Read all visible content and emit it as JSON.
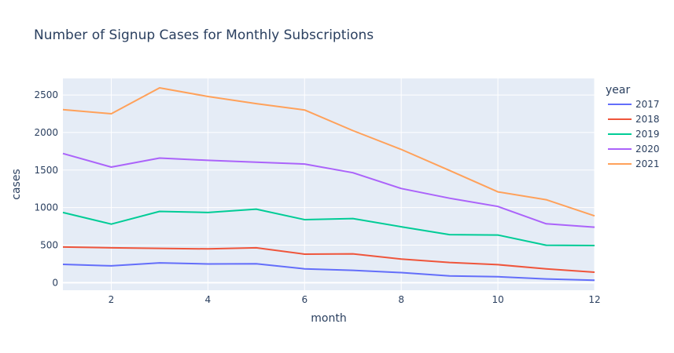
{
  "chart_data": {
    "type": "line",
    "title": "Number of Signup Cases for Monthly Subscriptions",
    "xlabel": "month",
    "ylabel": "cases",
    "legend_title": "year",
    "legend_position": "right",
    "grid": true,
    "xlim": [
      1,
      12
    ],
    "ylim": [
      -100,
      2720
    ],
    "x_ticks": [
      2,
      4,
      6,
      8,
      10,
      12
    ],
    "y_ticks": [
      0,
      500,
      1000,
      1500,
      2000,
      2500
    ],
    "x": [
      1,
      2,
      3,
      4,
      5,
      6,
      7,
      8,
      9,
      10,
      11,
      12
    ],
    "series": [
      {
        "name": "2017",
        "color": "#636efa",
        "values": [
          245,
          225,
          265,
          250,
          252,
          185,
          165,
          135,
          90,
          80,
          50,
          33
        ]
      },
      {
        "name": "2018",
        "color": "#EF553B",
        "values": [
          475,
          465,
          458,
          450,
          465,
          380,
          385,
          315,
          270,
          240,
          185,
          140
        ]
      },
      {
        "name": "2019",
        "color": "#00cc96",
        "values": [
          935,
          780,
          950,
          935,
          980,
          840,
          855,
          745,
          640,
          635,
          500,
          495
        ]
      },
      {
        "name": "2020",
        "color": "#ab63fa",
        "values": [
          1720,
          1540,
          1660,
          1630,
          1605,
          1580,
          1465,
          1255,
          1125,
          1015,
          785,
          740
        ]
      },
      {
        "name": "2021",
        "color": "#FFA15A",
        "values": [
          2305,
          2250,
          2595,
          2480,
          2385,
          2300,
          2025,
          1775,
          1495,
          1210,
          1105,
          890
        ]
      }
    ]
  }
}
